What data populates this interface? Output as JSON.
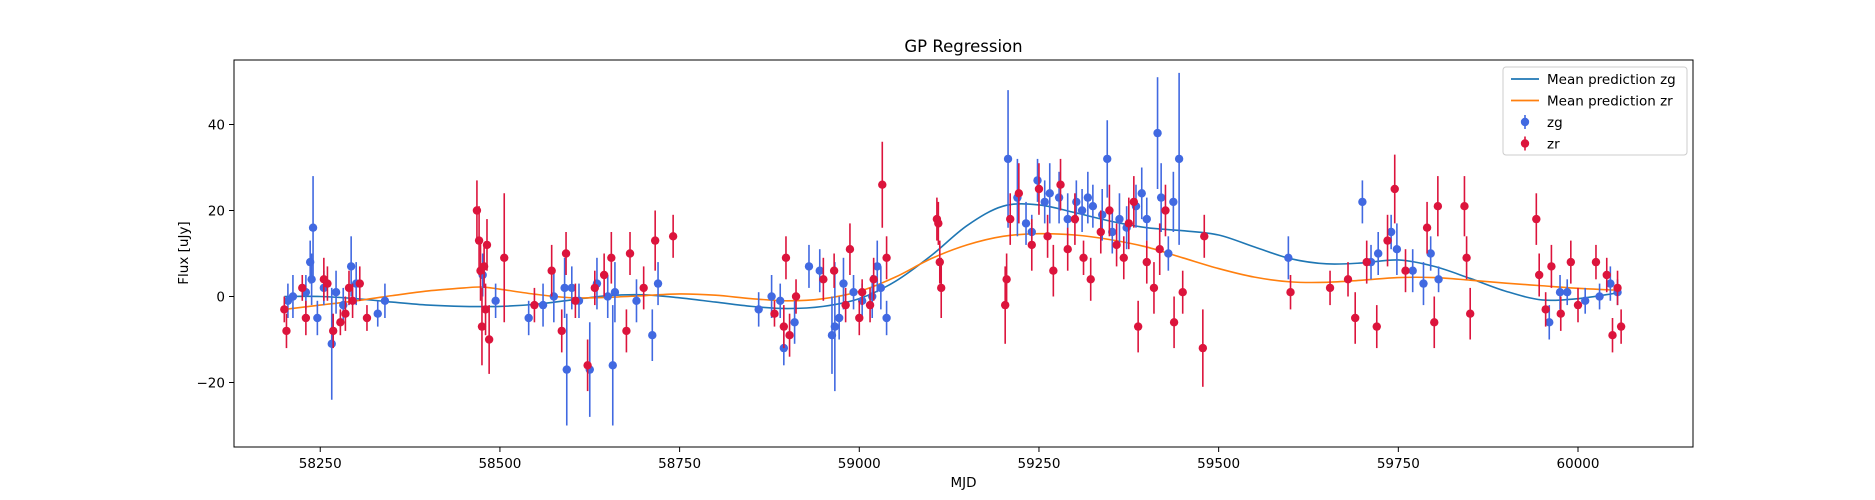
{
  "chart_data": {
    "type": "scatter",
    "title": "GP Regression",
    "xlabel": "MJD",
    "ylabel": "Flux [uJy]",
    "xlim": [
      58130,
      60160
    ],
    "ylim": [
      -35,
      55
    ],
    "x_ticks": [
      58250,
      58500,
      58750,
      59000,
      59250,
      59500,
      59750,
      60000
    ],
    "y_ticks": [
      -20,
      0,
      20,
      40
    ],
    "grid": false,
    "legend_position": "top-right",
    "colors": {
      "mean_zg": "#1f77b4",
      "mean_zr": "#ff7f0e",
      "zg": "#4169e1",
      "zr": "#dc143c"
    },
    "legend": [
      {
        "label": "Mean prediction zg",
        "kind": "line",
        "color": "#1f77b4"
      },
      {
        "label": "Mean prediction zr",
        "kind": "line",
        "color": "#ff7f0e"
      },
      {
        "label": "zg",
        "kind": "errorbar",
        "color": "#4169e1"
      },
      {
        "label": "zr",
        "kind": "errorbar",
        "color": "#dc143c"
      }
    ],
    "mean_prediction": [
      {
        "name": "Mean prediction zg",
        "color": "#1f77b4",
        "x": [
          58200,
          58250,
          58300,
          58350,
          58400,
          58450,
          58500,
          58550,
          58600,
          58650,
          58700,
          58750,
          58800,
          58850,
          58900,
          58950,
          59000,
          59050,
          59100,
          59150,
          59200,
          59250,
          59300,
          59350,
          59400,
          59450,
          59500,
          59550,
          59600,
          59650,
          59700,
          59750,
          59800,
          59850,
          59900,
          59950,
          60000,
          60050
        ],
        "y": [
          0.0,
          0.0,
          -0.5,
          -1.3,
          -2.0,
          -2.3,
          -2.3,
          -1.8,
          -0.8,
          0.2,
          0.4,
          -0.3,
          -1.3,
          -2.3,
          -2.8,
          -2.3,
          -0.5,
          3.5,
          9.5,
          16.5,
          21.0,
          21.3,
          19.5,
          17.5,
          16.0,
          15.3,
          14.3,
          11.5,
          8.8,
          7.6,
          7.8,
          8.5,
          7.0,
          4.2,
          1.2,
          -0.8,
          -0.5,
          0.7
        ]
      },
      {
        "name": "Mean prediction zr",
        "color": "#ff7f0e",
        "x": [
          58200,
          58250,
          58300,
          58350,
          58400,
          58450,
          58475,
          58500,
          58550,
          58600,
          58650,
          58700,
          58750,
          58800,
          58850,
          58900,
          58950,
          59000,
          59050,
          59100,
          59150,
          59200,
          59250,
          59300,
          59350,
          59400,
          59450,
          59500,
          59550,
          59600,
          59650,
          59700,
          59750,
          59800,
          59850,
          59900,
          59950,
          60000,
          60050
        ],
        "y": [
          -3.0,
          -2.0,
          -1.0,
          0.2,
          1.3,
          2.0,
          2.2,
          1.7,
          0.5,
          -0.3,
          -0.2,
          0.2,
          0.6,
          0.3,
          -0.5,
          -1.0,
          -0.5,
          1.2,
          4.5,
          8.8,
          12.0,
          14.0,
          14.6,
          14.3,
          13.2,
          11.5,
          9.0,
          6.5,
          4.5,
          3.4,
          3.3,
          3.8,
          4.4,
          4.4,
          3.8,
          3.1,
          2.5,
          1.9,
          1.5
        ]
      }
    ],
    "observations": [
      {
        "name": "zg",
        "color": "#4169e1",
        "points": [
          [
            58205,
            -1,
            4
          ],
          [
            58212,
            0,
            5
          ],
          [
            58230,
            1,
            4
          ],
          [
            58236,
            8,
            5
          ],
          [
            58238,
            4,
            6
          ],
          [
            58240,
            16,
            12
          ],
          [
            58246,
            -5,
            4
          ],
          [
            58255,
            2,
            4
          ],
          [
            58266,
            -11,
            13
          ],
          [
            58272,
            1,
            5
          ],
          [
            58282,
            -2,
            4
          ],
          [
            58293,
            7,
            7
          ],
          [
            58300,
            3,
            5
          ],
          [
            58330,
            -4,
            3
          ],
          [
            58340,
            -1,
            4
          ],
          [
            58476,
            5,
            5
          ],
          [
            58494,
            -1,
            4
          ],
          [
            58540,
            -5,
            4
          ],
          [
            58560,
            -2,
            5
          ],
          [
            58575,
            0,
            6
          ],
          [
            58590,
            2,
            7
          ],
          [
            58593,
            -17,
            13
          ],
          [
            58600,
            2,
            5
          ],
          [
            58610,
            -1,
            4
          ],
          [
            58625,
            -17,
            11
          ],
          [
            58635,
            3,
            6
          ],
          [
            58650,
            0,
            5
          ],
          [
            58657,
            -16,
            14
          ],
          [
            58660,
            1,
            7
          ],
          [
            58690,
            -1,
            5
          ],
          [
            58712,
            -9,
            6
          ],
          [
            58720,
            3,
            5
          ],
          [
            58860,
            -3,
            4
          ],
          [
            58878,
            0,
            5
          ],
          [
            58890,
            -1,
            4
          ],
          [
            58895,
            -12,
            4
          ],
          [
            58910,
            -6,
            5
          ],
          [
            58930,
            7,
            5
          ],
          [
            58945,
            6,
            5
          ],
          [
            58962,
            -9,
            9
          ],
          [
            58966,
            -7,
            15
          ],
          [
            58972,
            -5,
            5
          ],
          [
            58978,
            3,
            6
          ],
          [
            58992,
            1,
            4
          ],
          [
            59004,
            -1,
            4
          ],
          [
            59018,
            0,
            5
          ],
          [
            59025,
            7,
            6
          ],
          [
            59030,
            2,
            5
          ],
          [
            59038,
            -5,
            4
          ],
          [
            59207,
            32,
            16
          ],
          [
            59220,
            23,
            9
          ],
          [
            59232,
            17,
            5
          ],
          [
            59240,
            15,
            4
          ],
          [
            59248,
            27,
            5
          ],
          [
            59258,
            22,
            5
          ],
          [
            59265,
            24,
            7
          ],
          [
            59278,
            23,
            6
          ],
          [
            59290,
            18,
            6
          ],
          [
            59302,
            22,
            5
          ],
          [
            59310,
            20,
            5
          ],
          [
            59318,
            23,
            6
          ],
          [
            59325,
            21,
            5
          ],
          [
            59338,
            19,
            6
          ],
          [
            59345,
            32,
            9
          ],
          [
            59352,
            15,
            5
          ],
          [
            59362,
            18,
            6
          ],
          [
            59372,
            16,
            5
          ],
          [
            59385,
            21,
            5
          ],
          [
            59393,
            24,
            6
          ],
          [
            59400,
            18,
            5
          ],
          [
            59415,
            38,
            13
          ],
          [
            59420,
            23,
            8
          ],
          [
            59430,
            10,
            4
          ],
          [
            59437,
            22,
            7
          ],
          [
            59445,
            32,
            20
          ],
          [
            59597,
            9,
            5
          ],
          [
            59700,
            22,
            5
          ],
          [
            59712,
            8,
            4
          ],
          [
            59722,
            10,
            5
          ],
          [
            59740,
            15,
            4
          ],
          [
            59748,
            11,
            6
          ],
          [
            59770,
            6,
            5
          ],
          [
            59785,
            3,
            5
          ],
          [
            59795,
            10,
            4
          ],
          [
            59806,
            4,
            3
          ],
          [
            59960,
            -6,
            4
          ],
          [
            59975,
            1,
            4
          ],
          [
            59985,
            1,
            3
          ],
          [
            60010,
            -1,
            3
          ],
          [
            60030,
            0,
            3
          ],
          [
            60045,
            3,
            4
          ],
          [
            60055,
            1,
            3
          ]
        ]
      },
      {
        "name": "zr",
        "color": "#dc143c",
        "points": [
          [
            58200,
            -3,
            3
          ],
          [
            58203,
            -8,
            4
          ],
          [
            58225,
            2,
            3
          ],
          [
            58230,
            -5,
            4
          ],
          [
            58255,
            4,
            5
          ],
          [
            58260,
            3,
            4
          ],
          [
            58268,
            -8,
            4
          ],
          [
            58278,
            -6,
            3
          ],
          [
            58285,
            -4,
            4
          ],
          [
            58290,
            2,
            4
          ],
          [
            58295,
            -1,
            4
          ],
          [
            58305,
            3,
            4
          ],
          [
            58315,
            -5,
            3
          ],
          [
            58468,
            20,
            7
          ],
          [
            58471,
            13,
            8
          ],
          [
            58473,
            6,
            7
          ],
          [
            58475,
            -7,
            9
          ],
          [
            58478,
            7,
            5
          ],
          [
            58480,
            -3,
            6
          ],
          [
            58482,
            12,
            6
          ],
          [
            58485,
            -10,
            8
          ],
          [
            58506,
            9,
            15
          ],
          [
            58548,
            -2,
            4
          ],
          [
            58572,
            6,
            6
          ],
          [
            58586,
            -8,
            5
          ],
          [
            58592,
            10,
            5
          ],
          [
            58605,
            -1,
            4
          ],
          [
            58622,
            -16,
            6
          ],
          [
            58632,
            2,
            4
          ],
          [
            58645,
            5,
            5
          ],
          [
            58655,
            9,
            6
          ],
          [
            58676,
            -8,
            5
          ],
          [
            58681,
            10,
            5
          ],
          [
            58700,
            2,
            5
          ],
          [
            58716,
            13,
            7
          ],
          [
            58741,
            14,
            5
          ],
          [
            58882,
            -4,
            3
          ],
          [
            58895,
            -7,
            5
          ],
          [
            58898,
            9,
            5
          ],
          [
            58903,
            -9,
            5
          ],
          [
            58912,
            0,
            4
          ],
          [
            58950,
            4,
            5
          ],
          [
            58965,
            6,
            4
          ],
          [
            58981,
            -2,
            4
          ],
          [
            58987,
            11,
            6
          ],
          [
            59000,
            -5,
            4
          ],
          [
            59004,
            1,
            3
          ],
          [
            59015,
            -2,
            4
          ],
          [
            59020,
            4,
            5
          ],
          [
            59032,
            26,
            10
          ],
          [
            59038,
            9,
            5
          ],
          [
            59108,
            18,
            5
          ],
          [
            59110,
            17,
            5
          ],
          [
            59112,
            8,
            5
          ],
          [
            59114,
            2,
            7
          ],
          [
            59203,
            -2,
            9
          ],
          [
            59205,
            4,
            6
          ],
          [
            59210,
            18,
            6
          ],
          [
            59222,
            24,
            7
          ],
          [
            59240,
            12,
            6
          ],
          [
            59250,
            25,
            6
          ],
          [
            59262,
            14,
            5
          ],
          [
            59270,
            6,
            6
          ],
          [
            59280,
            26,
            6
          ],
          [
            59290,
            11,
            5
          ],
          [
            59300,
            18,
            6
          ],
          [
            59312,
            9,
            4
          ],
          [
            59322,
            4,
            5
          ],
          [
            59336,
            15,
            5
          ],
          [
            59348,
            20,
            6
          ],
          [
            59358,
            12,
            5
          ],
          [
            59368,
            9,
            5
          ],
          [
            59375,
            17,
            6
          ],
          [
            59382,
            22,
            6
          ],
          [
            59388,
            -7,
            6
          ],
          [
            59400,
            8,
            5
          ],
          [
            59410,
            2,
            6
          ],
          [
            59418,
            11,
            6
          ],
          [
            59426,
            20,
            6
          ],
          [
            59438,
            -6,
            6
          ],
          [
            59450,
            1,
            5
          ],
          [
            59478,
            -12,
            9
          ],
          [
            59480,
            14,
            5
          ],
          [
            59600,
            1,
            4
          ],
          [
            59655,
            2,
            4
          ],
          [
            59680,
            4,
            4
          ],
          [
            59690,
            -5,
            6
          ],
          [
            59706,
            8,
            5
          ],
          [
            59720,
            -7,
            5
          ],
          [
            59735,
            13,
            6
          ],
          [
            59745,
            25,
            8
          ],
          [
            59760,
            6,
            5
          ],
          [
            59790,
            16,
            6
          ],
          [
            59800,
            -6,
            6
          ],
          [
            59805,
            21,
            7
          ],
          [
            59842,
            21,
            7
          ],
          [
            59845,
            9,
            5
          ],
          [
            59850,
            -4,
            6
          ],
          [
            59942,
            18,
            6
          ],
          [
            59946,
            5,
            5
          ],
          [
            59955,
            -3,
            4
          ],
          [
            59963,
            7,
            5
          ],
          [
            59976,
            -4,
            4
          ],
          [
            59990,
            8,
            5
          ],
          [
            60000,
            -2,
            4
          ],
          [
            60025,
            8,
            4
          ],
          [
            60040,
            5,
            4
          ],
          [
            60048,
            -9,
            4
          ],
          [
            60055,
            2,
            4
          ],
          [
            60060,
            -7,
            4
          ]
        ]
      }
    ]
  }
}
